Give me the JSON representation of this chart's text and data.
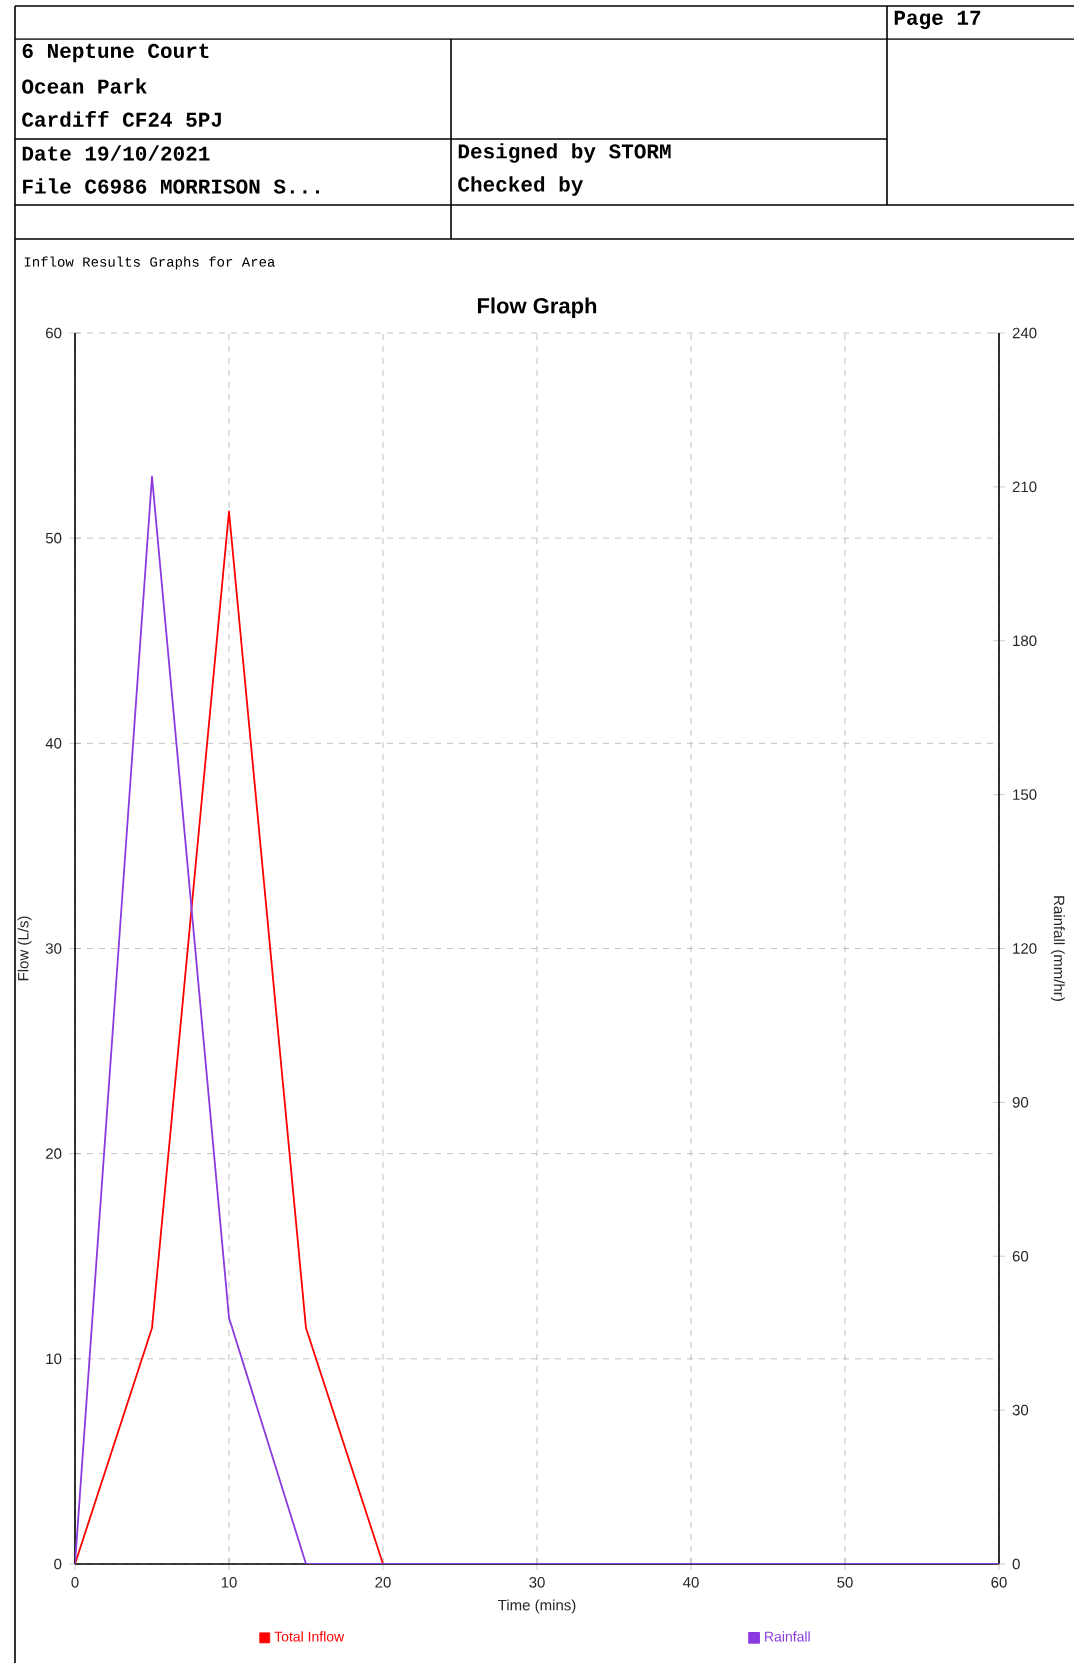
{
  "chart_data": {
    "type": "line",
    "title": "Flow Graph",
    "xlabel": "Time (mins)",
    "ylabel": "Flow (L/s)",
    "y2label": "Rainfall (mm/hr)",
    "x": [
      0,
      5,
      10,
      15,
      20,
      30,
      40,
      50,
      60
    ],
    "series": [
      {
        "name": "Total Inflow",
        "color": "#ff0000",
        "values": [
          0,
          11.5,
          51.3,
          11.5,
          0,
          null,
          null,
          null,
          null
        ]
      },
      {
        "name": "Rainfall",
        "color": "#8a3be0",
        "axis": "y2",
        "values": [
          0,
          212,
          48,
          0,
          0,
          0,
          0,
          0,
          0
        ]
      }
    ],
    "xlim": [
      0,
      60
    ],
    "xticks": [
      0,
      10,
      20,
      30,
      40,
      50,
      60
    ],
    "ylim": [
      0,
      60
    ],
    "yticks": [
      0,
      10,
      20,
      30,
      40,
      50,
      60
    ],
    "y2lim": [
      0,
      240
    ],
    "y2ticks": [
      0,
      30,
      60,
      90,
      120,
      150,
      180,
      210,
      240
    ],
    "grid": true,
    "legend": "bottom",
    "marker": "none",
    "line_style": "solid",
    "annotations": [
      "Page 17",
      "6 Neptune Court",
      "Ocean Park",
      "Cardiff  CF24 5PJ",
      "Date 19/10/2021",
      "File C6986 MORRISON S...",
      "Designed by STORM",
      "Checked by",
      "Inflow Results Graphs for Area"
    ]
  }
}
